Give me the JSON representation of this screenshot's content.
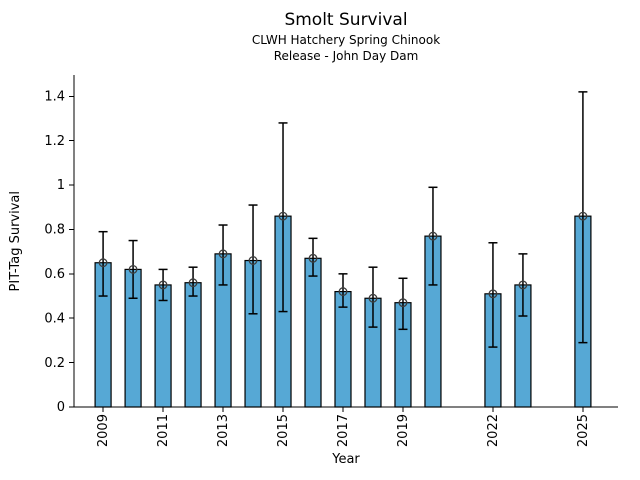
{
  "header": {
    "title": "Smolt Survival",
    "subtitle_line1": "CLWH Hatchery Spring Chinook",
    "subtitle_line2": "Release - John Day Dam"
  },
  "chart_data": {
    "type": "bar",
    "title": "Smolt Survival",
    "subtitle": [
      "CLWH Hatchery Spring Chinook",
      "Release - John Day Dam"
    ],
    "xlabel": "Year",
    "ylabel": "PIT-Tag Survival",
    "categories": [
      2009,
      2010,
      2011,
      2012,
      2013,
      2014,
      2015,
      2016,
      2017,
      2018,
      2019,
      2020,
      2022,
      2023,
      2025
    ],
    "values": [
      0.65,
      0.62,
      0.55,
      0.56,
      0.69,
      0.66,
      0.86,
      0.67,
      0.52,
      0.49,
      0.47,
      0.77,
      0.51,
      0.55,
      0.86
    ],
    "error_low": [
      0.5,
      0.49,
      0.48,
      0.5,
      0.55,
      0.42,
      0.43,
      0.59,
      0.45,
      0.36,
      0.35,
      0.55,
      0.27,
      0.41,
      0.29
    ],
    "error_high": [
      0.79,
      0.75,
      0.62,
      0.63,
      0.82,
      0.91,
      1.28,
      0.76,
      0.6,
      0.63,
      0.58,
      0.99,
      0.74,
      0.69,
      1.42
    ],
    "x_tick_values": [
      2009,
      2011,
      2013,
      2015,
      2017,
      2019,
      2022,
      2025
    ],
    "x_tick_labels": [
      "2009",
      "2011",
      "2013",
      "2015",
      "2017",
      "2019",
      "2022",
      "2025"
    ],
    "y_tick_values": [
      0,
      0.2,
      0.4,
      0.6,
      0.8,
      1,
      1.2,
      1.4
    ],
    "y_tick_labels": [
      "0",
      "0.2",
      "0.4",
      "0.6",
      "0.8",
      "1",
      "1.2",
      "1.4"
    ],
    "xlim": [
      2008.03,
      2026.17
    ],
    "ylim": [
      0,
      1.496
    ],
    "grid": false,
    "legend": null,
    "bar_color": "#56A8D5",
    "bar_edge_color": "#000000",
    "error_color": "#000000",
    "marker": "open-circle",
    "marker_edge_color": "#3d3d3d",
    "axis_color": "#000000",
    "background_color": "#ffffff"
  }
}
